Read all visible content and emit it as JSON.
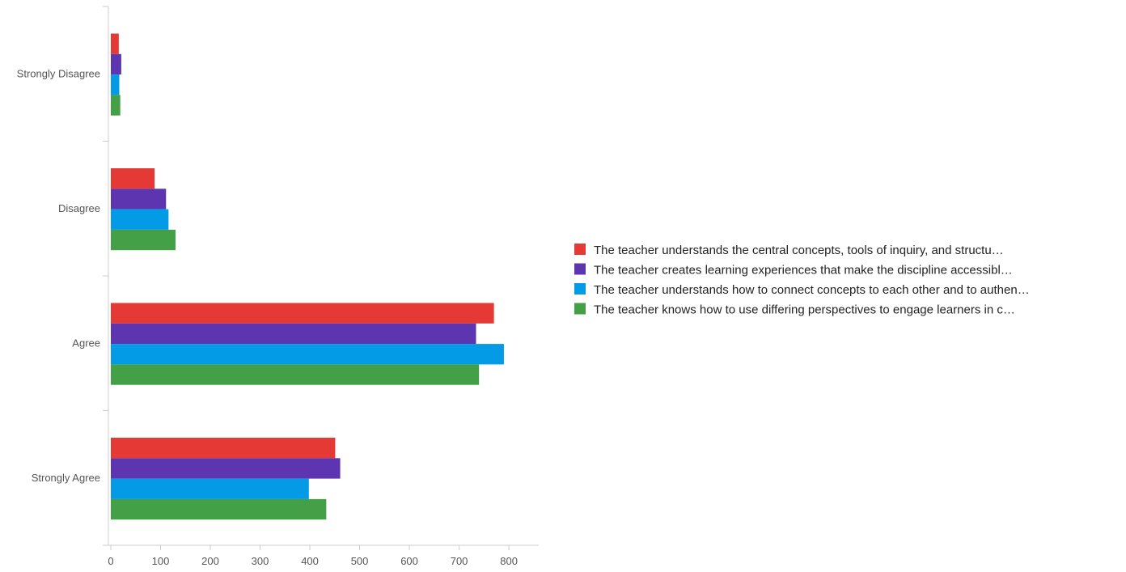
{
  "chart_data": {
    "type": "bar",
    "orientation": "horizontal",
    "categories": [
      "Strongly Disagree",
      "Disagree",
      "Agree",
      "Strongly Agree"
    ],
    "series": [
      {
        "name": "The teacher understands the central concepts, tools of inquiry, and structu…",
        "color": "#e53935",
        "values": [
          16,
          88,
          770,
          451
        ]
      },
      {
        "name": "The teacher creates learning experiences that make the discipline accessibl…",
        "color": "#5e35b1",
        "values": [
          21,
          111,
          734,
          461
        ]
      },
      {
        "name": "The teacher understands how to connect concepts to each other and to authen…",
        "color": "#039be5",
        "values": [
          17,
          116,
          790,
          398
        ]
      },
      {
        "name": "The teacher knows how to use differing perspectives to engage learners in c…",
        "color": "#43a047",
        "values": [
          19,
          130,
          740,
          433
        ]
      }
    ],
    "xticks": [
      0,
      100,
      200,
      300,
      400,
      500,
      600,
      700,
      800
    ],
    "xlim": [
      0,
      860
    ],
    "title": "",
    "xlabel": "",
    "ylabel": "",
    "grid": false,
    "legend_position": "right"
  }
}
